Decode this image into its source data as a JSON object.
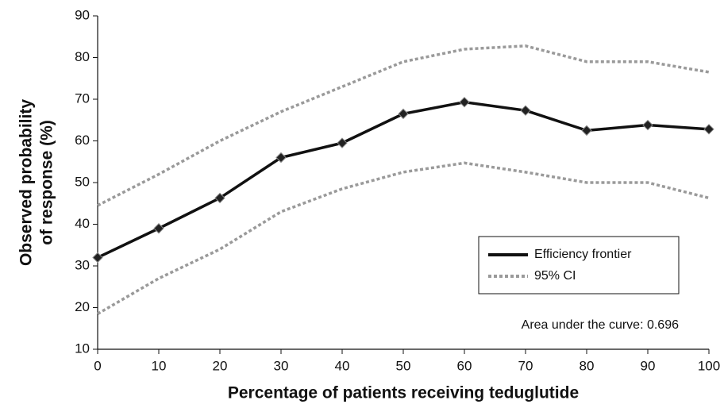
{
  "chart_data": {
    "type": "line",
    "xlabel": "Percentage of patients receiving teduglutide",
    "ylabel": [
      "Observed probability",
      "of response (%)"
    ],
    "annotation": "Area under the curve: 0.696",
    "x": [
      0,
      10,
      20,
      30,
      40,
      50,
      60,
      70,
      80,
      90,
      100
    ],
    "series": [
      {
        "name": "Efficiency frontier",
        "color": "#111111",
        "values": [
          32,
          39,
          46.3,
          56,
          59.5,
          66.5,
          69.3,
          67.3,
          62.5,
          63.8,
          62.8
        ]
      },
      {
        "name": "95% CI",
        "color": "#9a9a9a",
        "upper": [
          44.5,
          52,
          60,
          67,
          73,
          79,
          82,
          82.8,
          79,
          79,
          76.5
        ],
        "lower": [
          18.5,
          27,
          34,
          43,
          48.5,
          52.5,
          54.7,
          52.5,
          50,
          50,
          46.3
        ]
      }
    ],
    "xlim": [
      0,
      100
    ],
    "xticks": [
      0,
      10,
      20,
      30,
      40,
      50,
      60,
      70,
      80,
      90,
      100
    ],
    "ylim": [
      10,
      90
    ],
    "yticks": [
      10,
      20,
      30,
      40,
      50,
      60,
      70,
      80,
      90
    ],
    "grid": false
  }
}
